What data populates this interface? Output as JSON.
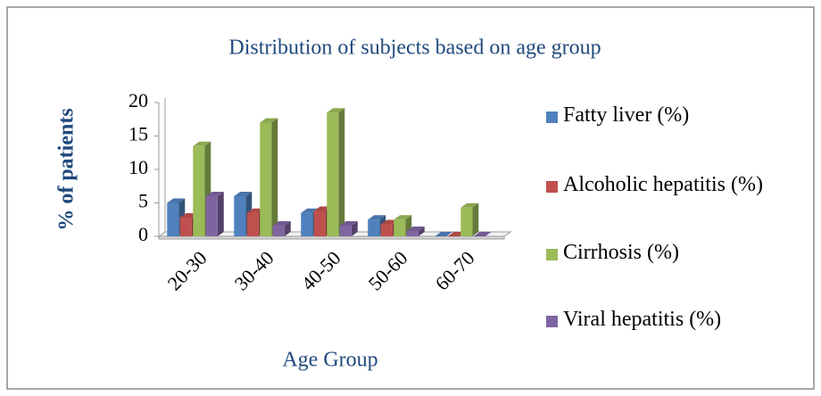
{
  "chart_data": {
    "type": "bar3d",
    "title": "Distribution of subjects based on age group",
    "x_label": "Age Group",
    "y_label": "% of patients",
    "categories": [
      "20-30",
      "30-40",
      "40-50",
      "50-60",
      "60-70"
    ],
    "series": [
      {
        "name": "Fatty liver (%)",
        "color": "#4f81bd",
        "values": [
          5,
          6,
          3.5,
          2.5,
          0
        ]
      },
      {
        "name": "Alcoholic hepatitis (%)",
        "color": "#c0504d",
        "values": [
          2.8,
          3.5,
          3.8,
          1.8,
          0
        ]
      },
      {
        "name": "Cirrhosis (%)",
        "color": "#9bbb59",
        "values": [
          13.5,
          17,
          18.5,
          2.5,
          4.3
        ]
      },
      {
        "name": "Viral hepatitis (%)",
        "color": "#8064a2",
        "values": [
          6,
          1.6,
          1.6,
          0.8,
          0
        ]
      }
    ],
    "ylim": [
      0,
      20
    ],
    "yticks": [
      0,
      5,
      10,
      15,
      20
    ],
    "grid": false,
    "legend": "right"
  }
}
